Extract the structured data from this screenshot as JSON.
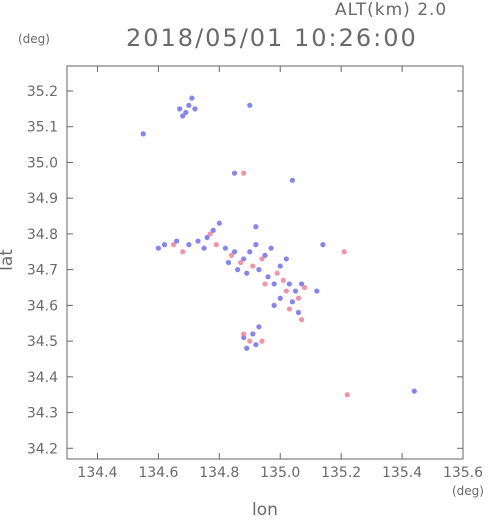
{
  "header": {
    "altitude_label": "ALT(km) 2.0",
    "timestamp": "2018/05/01 10:26:00"
  },
  "chart_data": {
    "type": "scatter",
    "title": "2018/05/01 10:26:00",
    "xlabel": "lon",
    "ylabel": "lat",
    "x_unit": "(deg)",
    "y_unit": "(deg)",
    "xlim": [
      134.3,
      135.6
    ],
    "ylim": [
      34.17,
      35.27
    ],
    "x_ticks": [
      134.4,
      134.6,
      134.8,
      135.0,
      135.2,
      135.4,
      135.6
    ],
    "x_tick_labels": [
      "134.4",
      "134.6",
      "134.8",
      "135.0",
      "135.2",
      "135.4",
      "135.6"
    ],
    "y_ticks": [
      34.2,
      34.3,
      34.4,
      34.5,
      34.6,
      34.7,
      34.8,
      34.9,
      35.0,
      35.1,
      35.2
    ],
    "y_tick_labels": [
      "34.2",
      "34.3",
      "34.4",
      "34.5",
      "34.6",
      "34.7",
      "34.8",
      "34.9",
      "35.0",
      "35.1",
      "35.2"
    ],
    "grid": false,
    "colors": {
      "approaching": "#6f6ff5",
      "receding": "#f27f96"
    },
    "series": [
      {
        "color_key": "approaching",
        "points": [
          [
            134.67,
            35.15
          ],
          [
            134.69,
            35.14
          ],
          [
            134.7,
            35.16
          ],
          [
            134.71,
            35.18
          ],
          [
            134.68,
            35.13
          ],
          [
            134.72,
            35.15
          ],
          [
            134.55,
            35.08
          ],
          [
            134.9,
            35.16
          ],
          [
            134.85,
            34.97
          ],
          [
            135.04,
            34.95
          ],
          [
            134.92,
            34.82
          ],
          [
            134.8,
            34.83
          ],
          [
            134.78,
            34.81
          ],
          [
            134.76,
            34.79
          ],
          [
            134.73,
            34.78
          ],
          [
            134.75,
            34.76
          ],
          [
            134.7,
            34.77
          ],
          [
            134.62,
            34.77
          ],
          [
            134.6,
            34.76
          ],
          [
            134.66,
            34.78
          ],
          [
            134.82,
            34.76
          ],
          [
            134.85,
            34.75
          ],
          [
            134.88,
            34.73
          ],
          [
            134.9,
            34.75
          ],
          [
            134.92,
            34.77
          ],
          [
            134.95,
            34.74
          ],
          [
            134.97,
            34.76
          ],
          [
            134.83,
            34.72
          ],
          [
            134.86,
            34.7
          ],
          [
            134.89,
            34.69
          ],
          [
            134.93,
            34.7
          ],
          [
            134.96,
            34.68
          ],
          [
            135.0,
            34.71
          ],
          [
            135.02,
            34.73
          ],
          [
            134.98,
            34.66
          ],
          [
            135.03,
            34.66
          ],
          [
            135.05,
            34.64
          ],
          [
            135.07,
            34.66
          ],
          [
            135.0,
            34.62
          ],
          [
            134.98,
            34.6
          ],
          [
            135.04,
            34.61
          ],
          [
            135.06,
            34.58
          ],
          [
            135.12,
            34.64
          ],
          [
            135.14,
            34.77
          ],
          [
            134.88,
            34.51
          ],
          [
            134.91,
            34.52
          ],
          [
            134.93,
            34.54
          ],
          [
            134.89,
            34.48
          ],
          [
            134.92,
            34.49
          ],
          [
            135.44,
            34.36
          ]
        ]
      },
      {
        "color_key": "receding",
        "points": [
          [
            134.65,
            34.77
          ],
          [
            134.68,
            34.75
          ],
          [
            134.77,
            34.8
          ],
          [
            134.79,
            34.77
          ],
          [
            134.84,
            34.74
          ],
          [
            134.87,
            34.72
          ],
          [
            134.91,
            34.71
          ],
          [
            134.94,
            34.73
          ],
          [
            134.99,
            34.69
          ],
          [
            135.01,
            34.67
          ],
          [
            134.95,
            34.66
          ],
          [
            135.02,
            34.64
          ],
          [
            135.06,
            34.62
          ],
          [
            135.08,
            34.65
          ],
          [
            135.03,
            34.59
          ],
          [
            135.07,
            34.56
          ],
          [
            134.9,
            34.5
          ],
          [
            134.94,
            34.5
          ],
          [
            134.88,
            34.52
          ],
          [
            135.21,
            34.75
          ],
          [
            134.88,
            34.97
          ],
          [
            135.22,
            34.35
          ]
        ]
      }
    ]
  }
}
